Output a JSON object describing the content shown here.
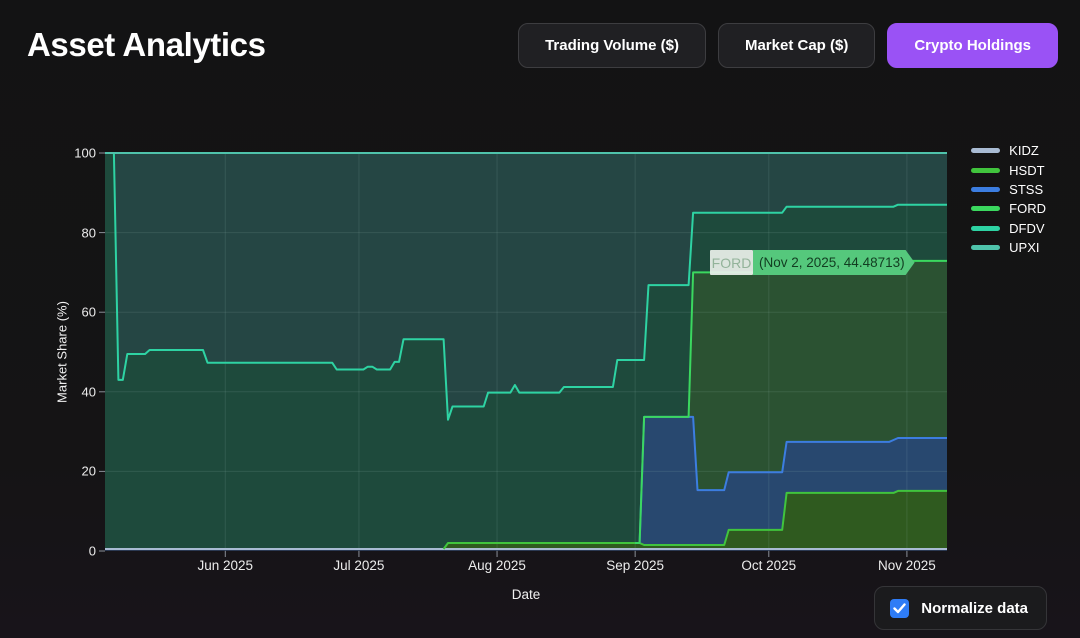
{
  "title": "Asset Analytics",
  "toolbar": {
    "buttons": [
      {
        "label": "Trading Volume ($)",
        "active": false
      },
      {
        "label": "Market Cap ($)",
        "active": false
      },
      {
        "label": "Crypto Holdings",
        "active": true
      }
    ],
    "active_color": "#9a52f5"
  },
  "chart_data": {
    "type": "area",
    "stacked": true,
    "normalized": true,
    "title": "",
    "xlabel": "Date",
    "ylabel": "Market Share (%)",
    "ylim": [
      0,
      100
    ],
    "grid": true,
    "legend_position": "right",
    "x_domain": {
      "start": "May 5, 2025",
      "end": "Nov 10, 2025",
      "total_days": 189
    },
    "x_ticks": [
      {
        "label": "Jun 2025",
        "day": 27
      },
      {
        "label": "Jul 2025",
        "day": 57
      },
      {
        "label": "Aug 2025",
        "day": 88
      },
      {
        "label": "Sep 2025",
        "day": 119
      },
      {
        "label": "Oct 2025",
        "day": 149
      },
      {
        "label": "Nov 2025",
        "day": 180
      }
    ],
    "y_ticks": [
      0,
      20,
      40,
      60,
      80,
      100
    ],
    "point_format": "[day_offset, market_share_percent]",
    "series": [
      {
        "name": "KIDZ",
        "line_color": "#a9bbd3",
        "fill_color": "#2b3952",
        "visible_from_day": 0,
        "points": [
          [
            0,
            0.5
          ]
        ]
      },
      {
        "name": "HSDT",
        "line_color": "#41c43d",
        "fill_color": "#2f5a1f",
        "visible_from_day": 76,
        "points": [
          [
            0,
            0
          ],
          [
            77,
            1.5
          ],
          [
            121,
            1.0
          ],
          [
            140,
            4.8
          ],
          [
            153,
            14.1
          ],
          [
            178,
            14.6
          ]
        ]
      },
      {
        "name": "STSS",
        "line_color": "#3c7de0",
        "fill_color": "#28486f",
        "visible_from_day": 119,
        "points": [
          [
            0,
            0
          ],
          [
            121,
            32.2
          ],
          [
            133,
            13.8
          ],
          [
            140,
            14.5
          ],
          [
            153,
            12.8
          ],
          [
            177,
            13.3
          ]
        ]
      },
      {
        "name": "FORD",
        "line_color": "#3bd85f",
        "fill_color": "#2b5232",
        "visible_from_day": 119,
        "points": [
          [
            0,
            0
          ],
          [
            132,
            36.3
          ],
          [
            133,
            54.7
          ],
          [
            140,
            50.2
          ],
          [
            153,
            45.0
          ],
          [
            177,
            44.5
          ]
        ]
      },
      {
        "name": "DFDV",
        "line_color": "#2ed3a3",
        "fill_color": "#1e4a3c",
        "visible_from_day": 0,
        "points": [
          [
            0,
            99.5
          ],
          [
            3,
            42.5
          ],
          [
            5,
            49.0
          ],
          [
            10,
            50.0
          ],
          [
            23,
            46.8
          ],
          [
            52,
            45.1
          ],
          [
            59,
            45.8
          ],
          [
            61,
            45.1
          ],
          [
            65,
            47.0
          ],
          [
            67,
            52.7
          ],
          [
            77,
            31.0
          ],
          [
            78,
            34.3
          ],
          [
            86,
            37.8
          ],
          [
            92,
            39.7
          ],
          [
            93,
            37.8
          ],
          [
            103,
            39.2
          ],
          [
            115,
            46.0
          ],
          [
            121,
            14.3
          ],
          [
            122,
            33.1
          ],
          [
            132,
            15.0
          ],
          [
            153,
            14.1
          ]
        ]
      },
      {
        "name": "UPXI",
        "line_color": "#4fc3ab",
        "fill_color": "#254644",
        "visible_from_day": 0,
        "points": [
          [
            0,
            0
          ],
          [
            3,
            57.0
          ],
          [
            5,
            50.5
          ],
          [
            10,
            49.5
          ],
          [
            23,
            52.7
          ],
          [
            52,
            54.4
          ],
          [
            59,
            53.7
          ],
          [
            61,
            54.4
          ],
          [
            65,
            52.5
          ],
          [
            67,
            46.8
          ],
          [
            77,
            67.0
          ],
          [
            78,
            63.7
          ],
          [
            86,
            60.2
          ],
          [
            92,
            58.3
          ],
          [
            93,
            60.2
          ],
          [
            103,
            58.8
          ],
          [
            115,
            52.0
          ],
          [
            122,
            33.2
          ],
          [
            132,
            15.0
          ],
          [
            153,
            13.5
          ],
          [
            178,
            13.0
          ]
        ]
      }
    ]
  },
  "tooltip": {
    "series": "FORD",
    "value_text": "(Nov 2, 2025, 44.48713)",
    "chip_bg": "#e9f0e9",
    "chip_text": "#93b39a",
    "box_bg": "#55c87c",
    "box_text": "#123d21"
  },
  "controls": {
    "normalize_label": "Normalize data",
    "checked": true,
    "checkbox_color": "#2e7cf6"
  }
}
